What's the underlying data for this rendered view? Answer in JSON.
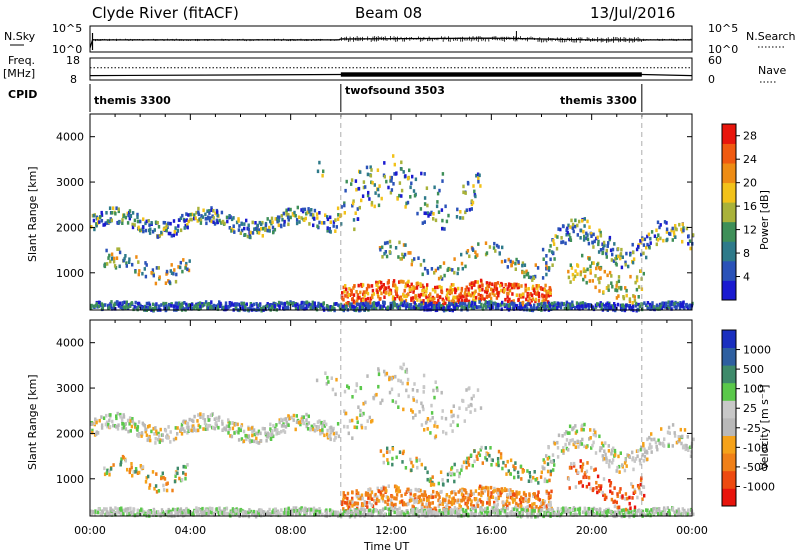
{
  "header": {
    "station": "Clyde River (fitACF)",
    "beam": "Beam 08",
    "date": "13/Jul/2016"
  },
  "side_labels": {
    "nsky": "N.Sky",
    "nsearch": "N.Search",
    "freq": "Freq.",
    "freq_unit": "[MHz]",
    "nave": "Nave",
    "cpid": "CPID"
  },
  "colors": {
    "power_scale": [
      "#1a1ad0",
      "#2a52b8",
      "#2e7a8a",
      "#3e8f58",
      "#a9b23a",
      "#f2c21a",
      "#ee8c14",
      "#f05a10",
      "#e8160c"
    ],
    "velocity_scale": [
      "#e8140c",
      "#ee4a10",
      "#f08018",
      "#f5a21a",
      "#b9b9b9",
      "#c8c8c8",
      "#5ac84a",
      "#3e8a6a",
      "#2e5fa0",
      "#1a2fbf"
    ]
  },
  "chart_data": [
    {
      "type": "line",
      "name": "noise-panel",
      "left_axis": {
        "label": "N.Sky",
        "ticks": [
          "10^5",
          "10^0"
        ]
      },
      "right_axis": {
        "label": "N.Search",
        "ticks": [
          "10^5",
          "10^0"
        ]
      },
      "x_range_hours": [
        0,
        24
      ],
      "series": [
        {
          "name": "N.Sky",
          "style": "solid",
          "x": [
            0,
            0.1,
            0.2,
            4,
            8,
            9.9,
            10,
            16,
            18,
            20,
            22,
            24
          ],
          "y": [
            0.0,
            0.45,
            0.45,
            0.45,
            0.45,
            0.45,
            0.5,
            0.55,
            0.5,
            0.45,
            0.45,
            0.45
          ]
        }
      ],
      "left_max_marker": "10^5"
    },
    {
      "type": "line",
      "name": "freq-nave-panel",
      "left_axis": {
        "label": "Freq. [MHz]",
        "ticks": [
          "18",
          "8"
        ],
        "range": [
          8,
          18
        ]
      },
      "right_axis": {
        "label": "Nave",
        "ticks": [
          "60",
          "0"
        ],
        "range": [
          0,
          60
        ]
      },
      "series": [
        {
          "name": "Freq.",
          "style": "solid",
          "x": [
            0,
            10,
            22,
            24
          ],
          "y": [
            10,
            10.5,
            10.5,
            10
          ]
        },
        {
          "name": "Nave",
          "style": "dotted",
          "x": [
            0,
            10,
            22,
            24
          ],
          "y": [
            25,
            25,
            25,
            25
          ]
        }
      ],
      "dense_block_hours": [
        10,
        22
      ]
    },
    {
      "type": "table",
      "name": "cpid-strip",
      "segments": [
        {
          "label": "themis 3300",
          "start": 0,
          "end": 10
        },
        {
          "label": "twofsound 3503",
          "start": 10,
          "end": 22
        },
        {
          "label": "themis 3300",
          "start": 18.5,
          "end": 22
        }
      ],
      "boundaries_hours": [
        10,
        22
      ]
    },
    {
      "type": "heatmap",
      "name": "power-panel",
      "xlabel": "",
      "ylabel": "Slant Range [km]",
      "xlim_hours": [
        0,
        24
      ],
      "ylim_km": [
        180,
        4500
      ],
      "yticks": [
        1000,
        2000,
        3000,
        4000
      ],
      "colorbar": {
        "label": "Power [dB]",
        "ticks": [
          4,
          8,
          12,
          16,
          20,
          24,
          28
        ],
        "range": [
          0,
          30
        ]
      }
    },
    {
      "type": "heatmap",
      "name": "velocity-panel",
      "xlabel": "Time UT",
      "ylabel": "Slant Range [km]",
      "xlim_hours": [
        0,
        24
      ],
      "ylim_km": [
        180,
        4500
      ],
      "yticks": [
        1000,
        2000,
        3000,
        4000
      ],
      "xticks": [
        "00:00",
        "04:00",
        "08:00",
        "12:00",
        "16:00",
        "20:00",
        "00:00"
      ],
      "colorbar": {
        "label": "Velocity [m s⁻¹]",
        "ticks": [
          "1000",
          "500",
          "100",
          "25",
          "-25",
          "-100",
          "-500",
          "-1000"
        ]
      }
    }
  ]
}
